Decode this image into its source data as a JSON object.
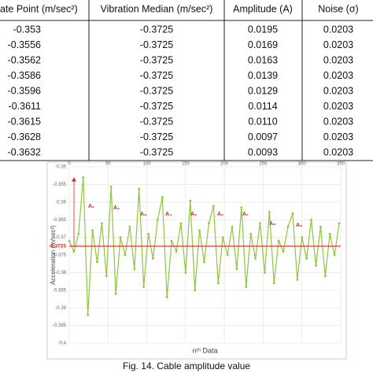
{
  "table": {
    "header": [
      "ate Point (m/sec²)",
      "Vibration Median (m/sec²)",
      "Amplitude (A)",
      "Noise (σ)"
    ],
    "rows": [
      [
        "-0.353",
        "-0.3725",
        "0.0195",
        "0.0203"
      ],
      [
        "-0.3556",
        "-0.3725",
        "0.0169",
        "0.0203"
      ],
      [
        "-0.3562",
        "-0.3725",
        "0.0163",
        "0.0203"
      ],
      [
        "-0.3586",
        "-0.3725",
        "0.0139",
        "0.0203"
      ],
      [
        "-0.3596",
        "-0.3725",
        "0.0129",
        "0.0203"
      ],
      [
        "-0.3611",
        "-0.3725",
        "0.0114",
        "0.0203"
      ],
      [
        "-0.3615",
        "-0.3725",
        "0.0110",
        "0.0203"
      ],
      [
        "-0.3628",
        "-0.3725",
        "0.0097",
        "0.0203"
      ],
      [
        "-0.3632",
        "-0.3725",
        "0.0093",
        "0.0203"
      ]
    ]
  },
  "chart_data": {
    "type": "line",
    "y_label": "Acceleration (m/sec²)",
    "x_label": "nᵗʰ Data",
    "x": [
      0,
      6,
      12,
      18,
      24,
      30,
      36,
      42,
      48,
      54,
      60,
      66,
      72,
      78,
      84,
      90,
      96,
      102,
      108,
      114,
      120,
      126,
      132,
      138,
      144,
      150,
      156,
      162,
      168,
      174,
      180,
      186,
      192,
      198,
      204,
      210,
      216,
      222,
      228,
      234,
      240,
      246,
      252,
      258,
      264,
      270,
      276,
      282,
      288,
      294,
      300,
      306,
      312,
      318,
      324,
      330,
      336,
      342,
      348
    ],
    "series": [
      {
        "color": "#8cc63f",
        "values": [
          -0.371,
          -0.374,
          -0.369,
          -0.353,
          -0.392,
          -0.368,
          -0.377,
          -0.366,
          -0.381,
          -0.3556,
          -0.386,
          -0.37,
          -0.375,
          -0.367,
          -0.379,
          -0.3562,
          -0.384,
          -0.369,
          -0.376,
          -0.365,
          -0.3586,
          -0.387,
          -0.371,
          -0.374,
          -0.366,
          -0.38,
          -0.3596,
          -0.385,
          -0.368,
          -0.377,
          -0.366,
          -0.3611,
          -0.383,
          -0.37,
          -0.375,
          -0.367,
          -0.379,
          -0.3615,
          -0.384,
          -0.369,
          -0.376,
          -0.366,
          -0.38,
          -0.3628,
          -0.383,
          -0.371,
          -0.374,
          -0.367,
          -0.3632,
          -0.382,
          -0.37,
          -0.376,
          -0.365,
          -0.378,
          -0.367,
          -0.381,
          -0.369,
          -0.375,
          -0.366
        ]
      }
    ],
    "median": -0.3725,
    "median_color": "#e0201b",
    "annotations": [
      "A₁",
      "A₂",
      "A₃",
      "A₄",
      "A₅",
      "A₆",
      "A₇",
      "A₈",
      "A₉"
    ],
    "xlim": [
      0,
      350
    ],
    "xticks": [
      0,
      50,
      100,
      150,
      200,
      250,
      300,
      350
    ],
    "ylim": [
      -0.4,
      -0.35
    ],
    "yticks": [
      -0.35,
      -0.355,
      -0.36,
      -0.365,
      -0.37,
      -0.375,
      -0.38,
      -0.385,
      -0.39,
      -0.395,
      -0.4
    ],
    "grid": true
  },
  "caption": "Fig. 14. Cable amplitude value"
}
